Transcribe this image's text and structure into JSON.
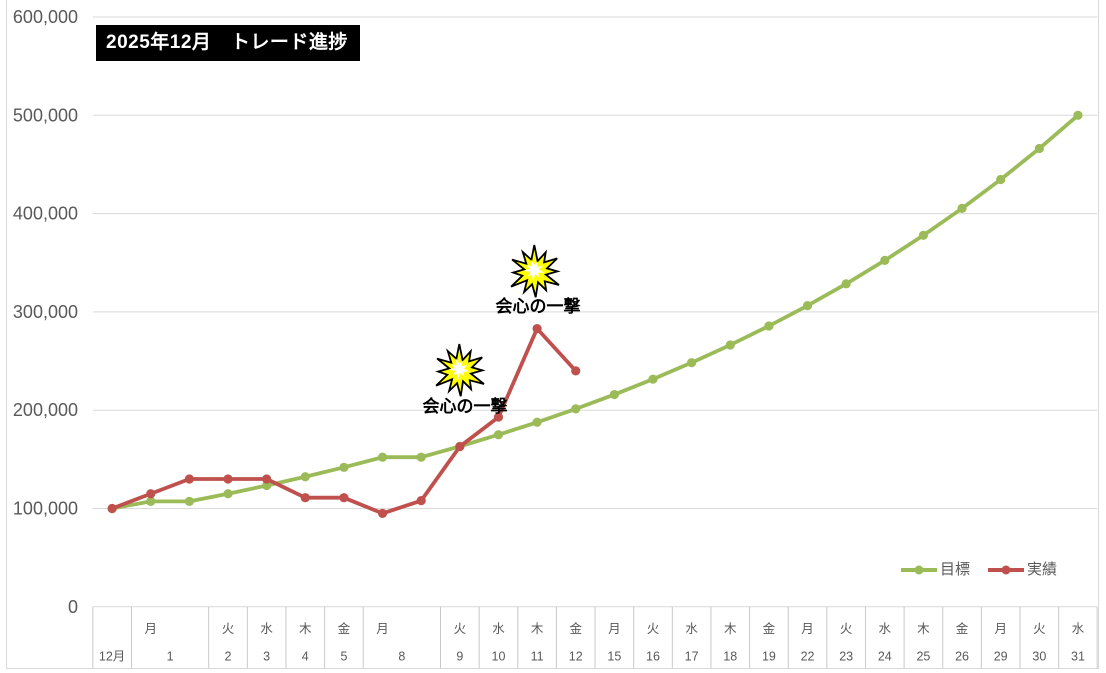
{
  "title": {
    "text": "2025年12月　トレード進捗",
    "bg": "#000000",
    "color": "#FFFFFF"
  },
  "legend": {
    "position": "bottom-right",
    "items": [
      {
        "label": "目標",
        "color": "#9BBB59"
      },
      {
        "label": "実績",
        "color": "#C0504D"
      }
    ]
  },
  "colors": {
    "target_series": "#9BBB59",
    "actual_series": "#C0504D",
    "gridline": "#D9D9D9",
    "table_border": "#C9C9C9",
    "axis_text": "#595959",
    "burst_fill": "#FFFF00",
    "burst_stroke": "#000000",
    "annotation_text": "#000000"
  },
  "chart_data": {
    "type": "line",
    "title": "2025年12月　トレード進捗",
    "grid": true,
    "legend_position": "bottom-right",
    "y_axis": {
      "min": 0,
      "max": 600000,
      "step": 100000,
      "tick_labels": [
        "0",
        "100,000",
        "200,000",
        "300,000",
        "400,000",
        "500,000",
        "600,000"
      ]
    },
    "x_axis": {
      "note": "two-row axis: weekday over date; columns 1 and 8 span two data slots",
      "columns": [
        {
          "weekday": "",
          "date": "12月",
          "span": 1
        },
        {
          "weekday": "月",
          "date": "1",
          "span": 2
        },
        {
          "weekday": "火",
          "date": "2",
          "span": 1
        },
        {
          "weekday": "水",
          "date": "3",
          "span": 1
        },
        {
          "weekday": "木",
          "date": "4",
          "span": 1
        },
        {
          "weekday": "金",
          "date": "5",
          "span": 1
        },
        {
          "weekday": "月",
          "date": "8",
          "span": 2
        },
        {
          "weekday": "火",
          "date": "9",
          "span": 1
        },
        {
          "weekday": "水",
          "date": "10",
          "span": 1
        },
        {
          "weekday": "木",
          "date": "11",
          "span": 1
        },
        {
          "weekday": "金",
          "date": "12",
          "span": 1
        },
        {
          "weekday": "月",
          "date": "15",
          "span": 1
        },
        {
          "weekday": "火",
          "date": "16",
          "span": 1
        },
        {
          "weekday": "水",
          "date": "17",
          "span": 1
        },
        {
          "weekday": "木",
          "date": "18",
          "span": 1
        },
        {
          "weekday": "金",
          "date": "19",
          "span": 1
        },
        {
          "weekday": "月",
          "date": "22",
          "span": 1
        },
        {
          "weekday": "火",
          "date": "23",
          "span": 1
        },
        {
          "weekday": "水",
          "date": "24",
          "span": 1
        },
        {
          "weekday": "木",
          "date": "25",
          "span": 1
        },
        {
          "weekday": "金",
          "date": "26",
          "span": 1
        },
        {
          "weekday": "月",
          "date": "29",
          "span": 1
        },
        {
          "weekday": "火",
          "date": "30",
          "span": 1
        },
        {
          "weekday": "水",
          "date": "31",
          "span": 1
        }
      ]
    },
    "series": [
      {
        "name": "目標",
        "color": "#9BBB59",
        "values": [
          100000,
          107248,
          107248,
          115022,
          123359,
          132300,
          141890,
          152175,
          152175,
          163205,
          175034,
          187721,
          201327,
          215919,
          231569,
          248353,
          266354,
          285659,
          306364,
          328569,
          352383,
          377923,
          405314,
          434690,
          466195,
          500000
        ]
      },
      {
        "name": "実績",
        "color": "#C0504D",
        "values": [
          100000,
          115000,
          130000,
          130000,
          130000,
          111000,
          111000,
          95000,
          108000,
          163000,
          193000,
          283000,
          240000
        ]
      }
    ],
    "annotations": [
      {
        "text": "会心の一撃",
        "series": "実績",
        "at_date": "9",
        "burst_cx": 460,
        "burst_cy": 371,
        "text_cx": 465,
        "text_cy": 406
      },
      {
        "text": "会心の一撃",
        "series": "実績",
        "at_date": "11",
        "burst_cx": 535,
        "burst_cy": 272,
        "text_cx": 538,
        "text_cy": 306
      }
    ]
  }
}
